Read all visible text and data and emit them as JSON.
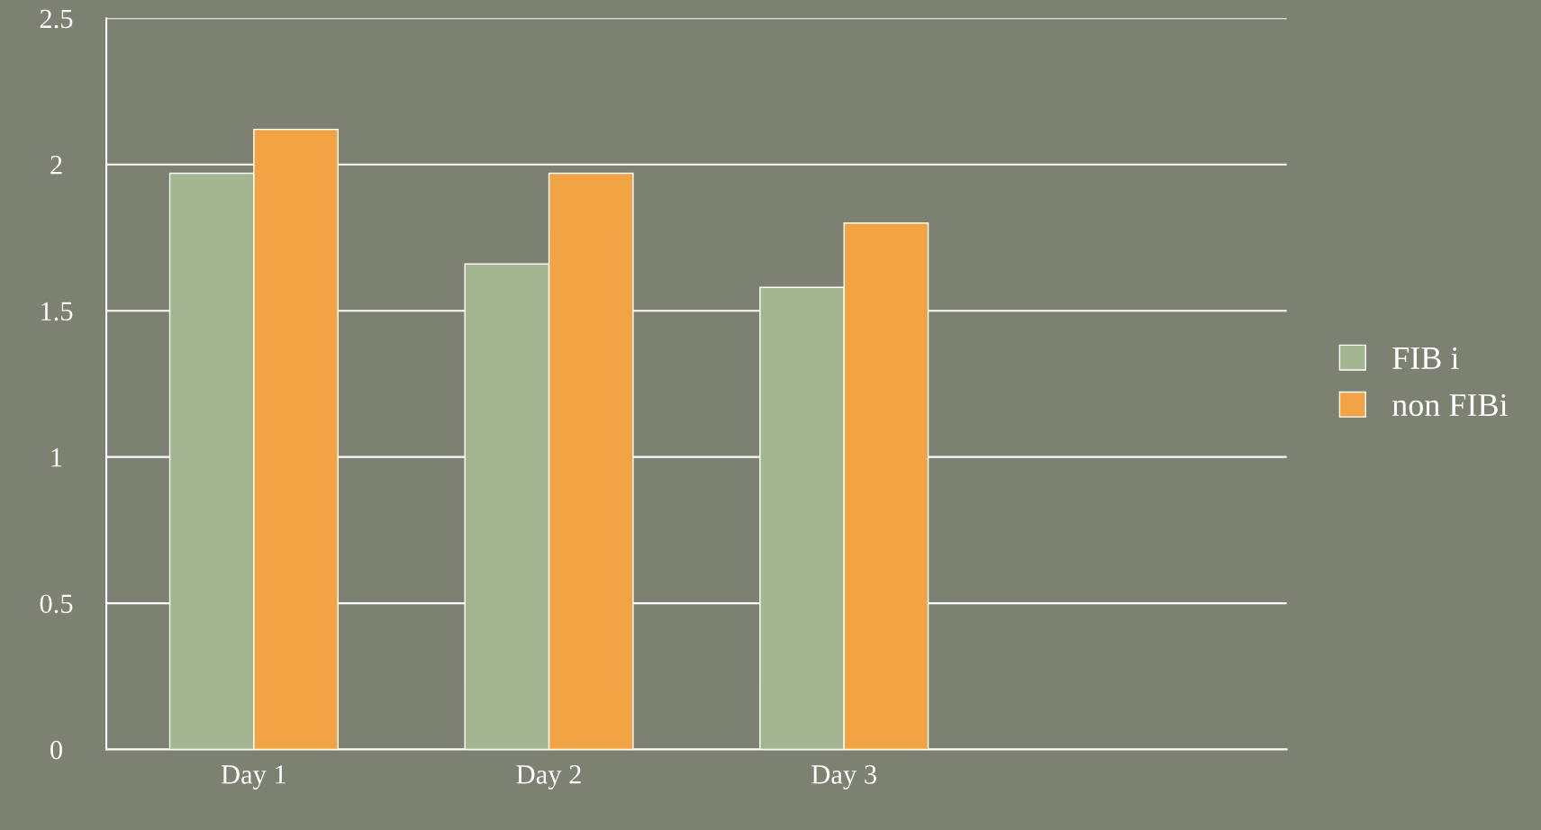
{
  "chart_data": {
    "type": "bar",
    "categories": [
      "Day 1",
      "Day 2",
      "Day 3",
      null
    ],
    "series": [
      {
        "name": "FIB i",
        "color": "#a4b592",
        "values": [
          1.97,
          1.66,
          1.58,
          null
        ]
      },
      {
        "name": "non FIBi",
        "color": "#f2a444",
        "values": [
          2.12,
          1.97,
          1.8,
          null
        ]
      }
    ],
    "ylim": [
      0,
      2.5
    ],
    "yticks": [
      0,
      0.5,
      1,
      1.5,
      2,
      2.5
    ],
    "grid": "y",
    "legend": "right"
  }
}
